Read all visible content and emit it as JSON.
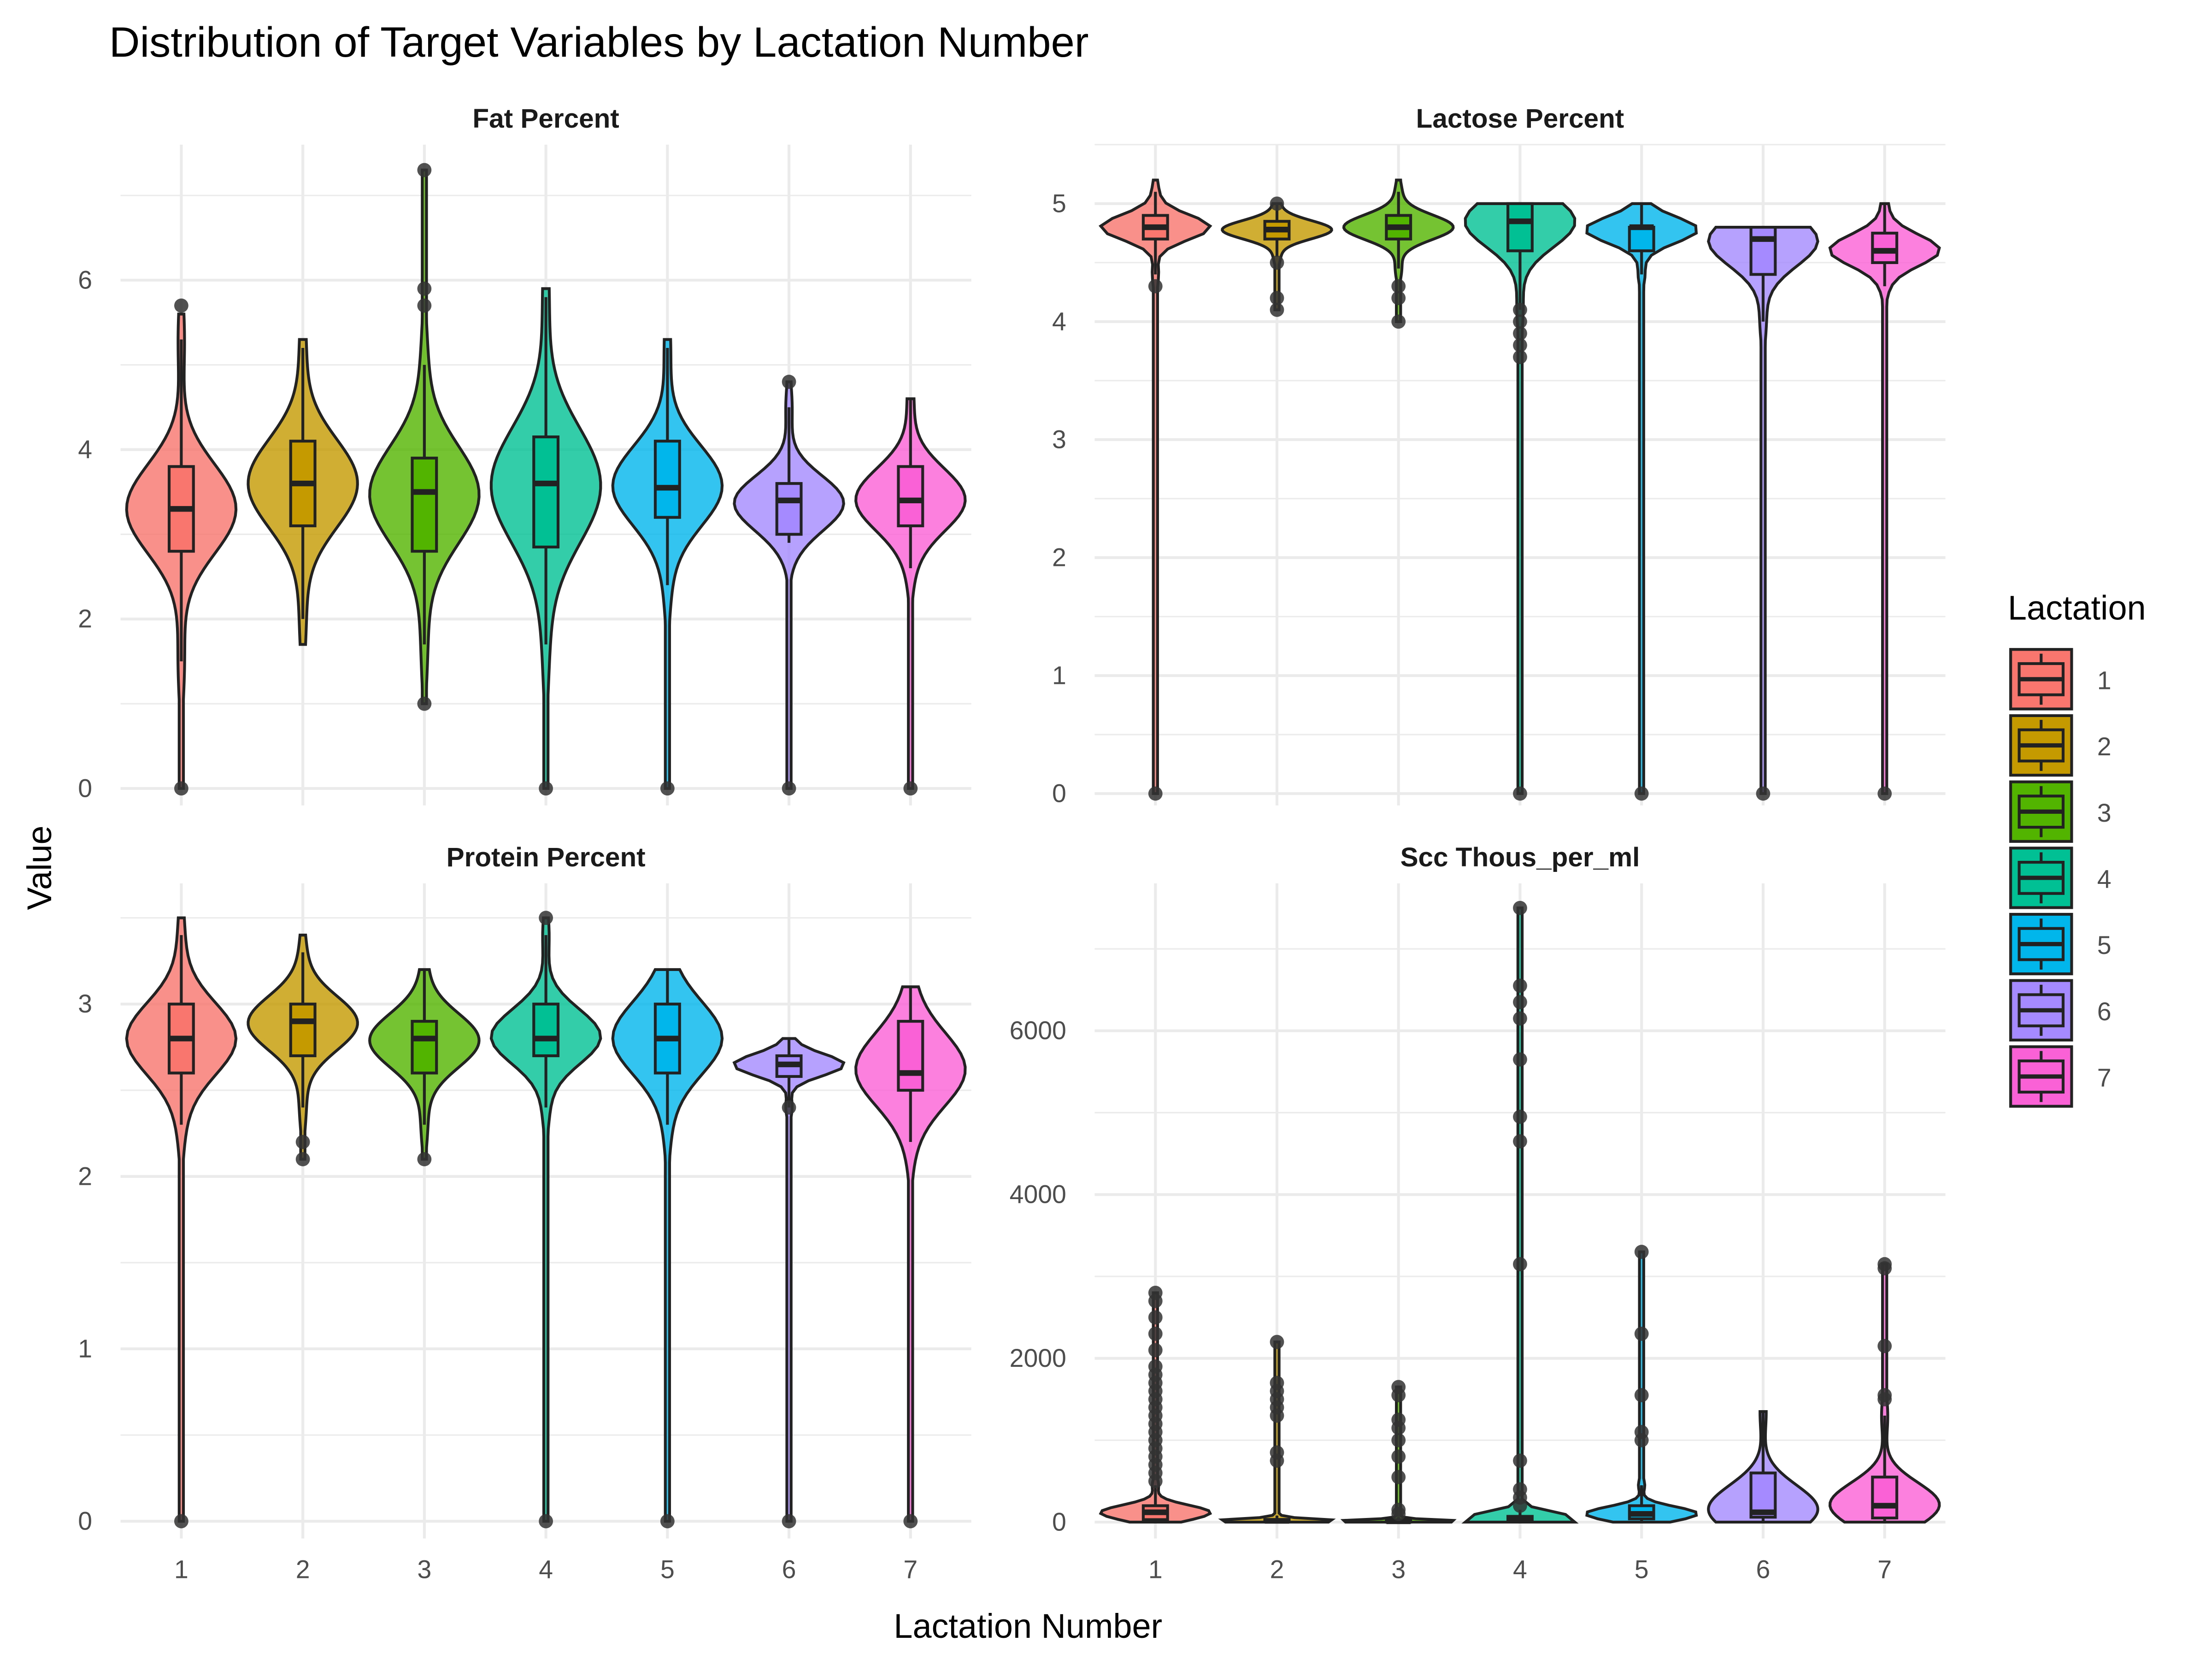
{
  "title": "Distribution of Target Variables by Lactation Number",
  "xlabel": "Lactation Number",
  "ylabel": "Value",
  "legend": {
    "title": "Lactation",
    "placement": "right",
    "items": [
      "1",
      "2",
      "3",
      "4",
      "5",
      "6",
      "7"
    ],
    "colors": [
      "#F8766D",
      "#C49A00",
      "#53B400",
      "#00C094",
      "#00B6EB",
      "#A58AFF",
      "#FB61D7"
    ]
  },
  "chart_data": [
    {
      "type": "violin",
      "panel": "Fat Percent",
      "categories": [
        "1",
        "2",
        "3",
        "4",
        "5",
        "6",
        "7"
      ],
      "ylim": [
        -0.2,
        7.6
      ],
      "yticks": [
        0,
        2,
        4,
        6
      ],
      "grid": true,
      "boxes": [
        {
          "q1": 2.8,
          "median": 3.3,
          "q3": 3.8,
          "wlo": 1.5,
          "whi": 5.3,
          "vmin": 0.0,
          "vmax": 5.6,
          "outliers": [
            0,
            5.7
          ]
        },
        {
          "q1": 3.1,
          "median": 3.6,
          "q3": 4.1,
          "wlo": 2.0,
          "whi": 5.2,
          "vmin": 1.7,
          "vmax": 5.3,
          "outliers": []
        },
        {
          "q1": 2.8,
          "median": 3.5,
          "q3": 3.9,
          "wlo": 1.7,
          "whi": 5.0,
          "vmin": 1.0,
          "vmax": 7.3,
          "outliers": [
            1.0,
            5.7,
            5.9,
            7.3
          ]
        },
        {
          "q1": 2.85,
          "median": 3.6,
          "q3": 4.15,
          "wlo": 1.7,
          "whi": 5.8,
          "vmin": 0.0,
          "vmax": 5.9,
          "outliers": [
            0
          ]
        },
        {
          "q1": 3.2,
          "median": 3.55,
          "q3": 4.1,
          "wlo": 2.4,
          "whi": 5.2,
          "vmin": 0.0,
          "vmax": 5.3,
          "outliers": [
            0
          ]
        },
        {
          "q1": 3.0,
          "median": 3.4,
          "q3": 3.6,
          "wlo": 2.9,
          "whi": 4.5,
          "vmin": 0.0,
          "vmax": 4.8,
          "outliers": [
            0,
            4.8
          ]
        },
        {
          "q1": 3.1,
          "median": 3.4,
          "q3": 3.8,
          "wlo": 2.6,
          "whi": 4.6,
          "vmin": 0.0,
          "vmax": 4.6,
          "outliers": [
            0
          ]
        }
      ]
    },
    {
      "type": "violin",
      "panel": "Lactose Percent",
      "categories": [
        "1",
        "2",
        "3",
        "4",
        "5",
        "6",
        "7"
      ],
      "ylim": [
        -0.1,
        5.5
      ],
      "yticks": [
        0,
        1,
        2,
        3,
        4,
        5
      ],
      "grid": true,
      "boxes": [
        {
          "q1": 4.7,
          "median": 4.8,
          "q3": 4.9,
          "wlo": 4.4,
          "whi": 5.1,
          "vmin": 0.0,
          "vmax": 5.2,
          "outliers": [
            0,
            4.3
          ]
        },
        {
          "q1": 4.7,
          "median": 4.78,
          "q3": 4.85,
          "wlo": 4.55,
          "whi": 5.0,
          "vmin": 4.1,
          "vmax": 5.0,
          "outliers": [
            4.1,
            4.2,
            4.5,
            5.0
          ]
        },
        {
          "q1": 4.7,
          "median": 4.8,
          "q3": 4.9,
          "wlo": 4.45,
          "whi": 5.1,
          "vmin": 4.0,
          "vmax": 5.2,
          "outliers": [
            4.0,
            4.2,
            4.3
          ]
        },
        {
          "q1": 4.6,
          "median": 4.85,
          "q3": 5.0,
          "wlo": 4.1,
          "whi": 5.0,
          "vmin": 0.0,
          "vmax": 5.0,
          "outliers": [
            0,
            3.7,
            3.8,
            3.9,
            4.0,
            4.1
          ]
        },
        {
          "q1": 4.6,
          "median": 4.8,
          "q3": 4.8,
          "wlo": 4.4,
          "whi": 5.0,
          "vmin": 0.0,
          "vmax": 5.0,
          "outliers": [
            0
          ]
        },
        {
          "q1": 4.4,
          "median": 4.7,
          "q3": 4.8,
          "wlo": 4.0,
          "whi": 4.8,
          "vmin": 0.0,
          "vmax": 4.8,
          "outliers": [
            0
          ]
        },
        {
          "q1": 4.5,
          "median": 4.6,
          "q3": 4.75,
          "wlo": 4.3,
          "whi": 5.0,
          "vmin": 0.0,
          "vmax": 5.0,
          "outliers": [
            0
          ]
        }
      ]
    },
    {
      "type": "violin",
      "panel": "Protein Percent",
      "categories": [
        "1",
        "2",
        "3",
        "4",
        "5",
        "6",
        "7"
      ],
      "ylim": [
        -0.1,
        3.7
      ],
      "yticks": [
        0,
        1,
        2,
        3
      ],
      "grid": true,
      "boxes": [
        {
          "q1": 2.6,
          "median": 2.8,
          "q3": 3.0,
          "wlo": 2.3,
          "whi": 3.4,
          "vmin": 0.0,
          "vmax": 3.5,
          "outliers": [
            0
          ]
        },
        {
          "q1": 2.7,
          "median": 2.9,
          "q3": 3.0,
          "wlo": 2.4,
          "whi": 3.3,
          "vmin": 2.1,
          "vmax": 3.4,
          "outliers": [
            2.1,
            2.2
          ]
        },
        {
          "q1": 2.6,
          "median": 2.8,
          "q3": 2.9,
          "wlo": 2.3,
          "whi": 3.2,
          "vmin": 2.1,
          "vmax": 3.2,
          "outliers": [
            2.1
          ]
        },
        {
          "q1": 2.7,
          "median": 2.8,
          "q3": 3.0,
          "wlo": 2.4,
          "whi": 3.4,
          "vmin": 0.0,
          "vmax": 3.5,
          "outliers": [
            0,
            3.5
          ]
        },
        {
          "q1": 2.6,
          "median": 2.8,
          "q3": 3.0,
          "wlo": 2.3,
          "whi": 3.2,
          "vmin": 0.0,
          "vmax": 3.2,
          "outliers": [
            0
          ]
        },
        {
          "q1": 2.58,
          "median": 2.65,
          "q3": 2.7,
          "wlo": 2.4,
          "whi": 2.8,
          "vmin": 0.0,
          "vmax": 2.8,
          "outliers": [
            0,
            2.4
          ]
        },
        {
          "q1": 2.5,
          "median": 2.6,
          "q3": 2.9,
          "wlo": 2.2,
          "whi": 3.1,
          "vmin": 0.0,
          "vmax": 3.1,
          "outliers": [
            0
          ]
        }
      ]
    },
    {
      "type": "violin",
      "panel": "Scc Thous_per_ml",
      "categories": [
        "1",
        "2",
        "3",
        "4",
        "5",
        "6",
        "7"
      ],
      "ylim": [
        -200,
        7800
      ],
      "yticks": [
        0,
        2000,
        4000,
        6000
      ],
      "grid": true,
      "boxes": [
        {
          "q1": 30,
          "median": 120,
          "q3": 200,
          "wlo": 0,
          "whi": 450,
          "vmin": 0,
          "vmax": 2800,
          "outliers": [
            500,
            600,
            700,
            800,
            900,
            1000,
            1100,
            1200,
            1300,
            1400,
            1500,
            1600,
            1700,
            1800,
            1900,
            2100,
            2300,
            2500,
            2700,
            2800
          ]
        },
        {
          "q1": 5,
          "median": 15,
          "q3": 30,
          "wlo": 0,
          "whi": 80,
          "vmin": 0,
          "vmax": 2200,
          "outliers": [
            750,
            850,
            1300,
            1400,
            1500,
            1600,
            1700,
            2200
          ]
        },
        {
          "q1": 5,
          "median": 10,
          "q3": 25,
          "wlo": 0,
          "whi": 60,
          "vmin": 0,
          "vmax": 1650,
          "outliers": [
            100,
            150,
            550,
            800,
            1000,
            1150,
            1250,
            1550,
            1650
          ]
        },
        {
          "q1": 10,
          "median": 30,
          "q3": 70,
          "wlo": 0,
          "whi": 150,
          "vmin": 0,
          "vmax": 7500,
          "outliers": [
            200,
            300,
            400,
            750,
            3150,
            4650,
            4950,
            5650,
            6150,
            6350,
            6550,
            7500
          ]
        },
        {
          "q1": 40,
          "median": 100,
          "q3": 200,
          "wlo": 0,
          "whi": 450,
          "vmin": 0,
          "vmax": 3300,
          "outliers": [
            1000,
            1100,
            1550,
            2300,
            3300
          ]
        },
        {
          "q1": 60,
          "median": 120,
          "q3": 600,
          "wlo": 0,
          "whi": 1350,
          "vmin": 0,
          "vmax": 1350,
          "outliers": []
        },
        {
          "q1": 50,
          "median": 200,
          "q3": 550,
          "wlo": 0,
          "whi": 1300,
          "vmin": 0,
          "vmax": 3150,
          "outliers": [
            1500,
            1550,
            2150,
            3100,
            3150
          ]
        }
      ]
    }
  ]
}
